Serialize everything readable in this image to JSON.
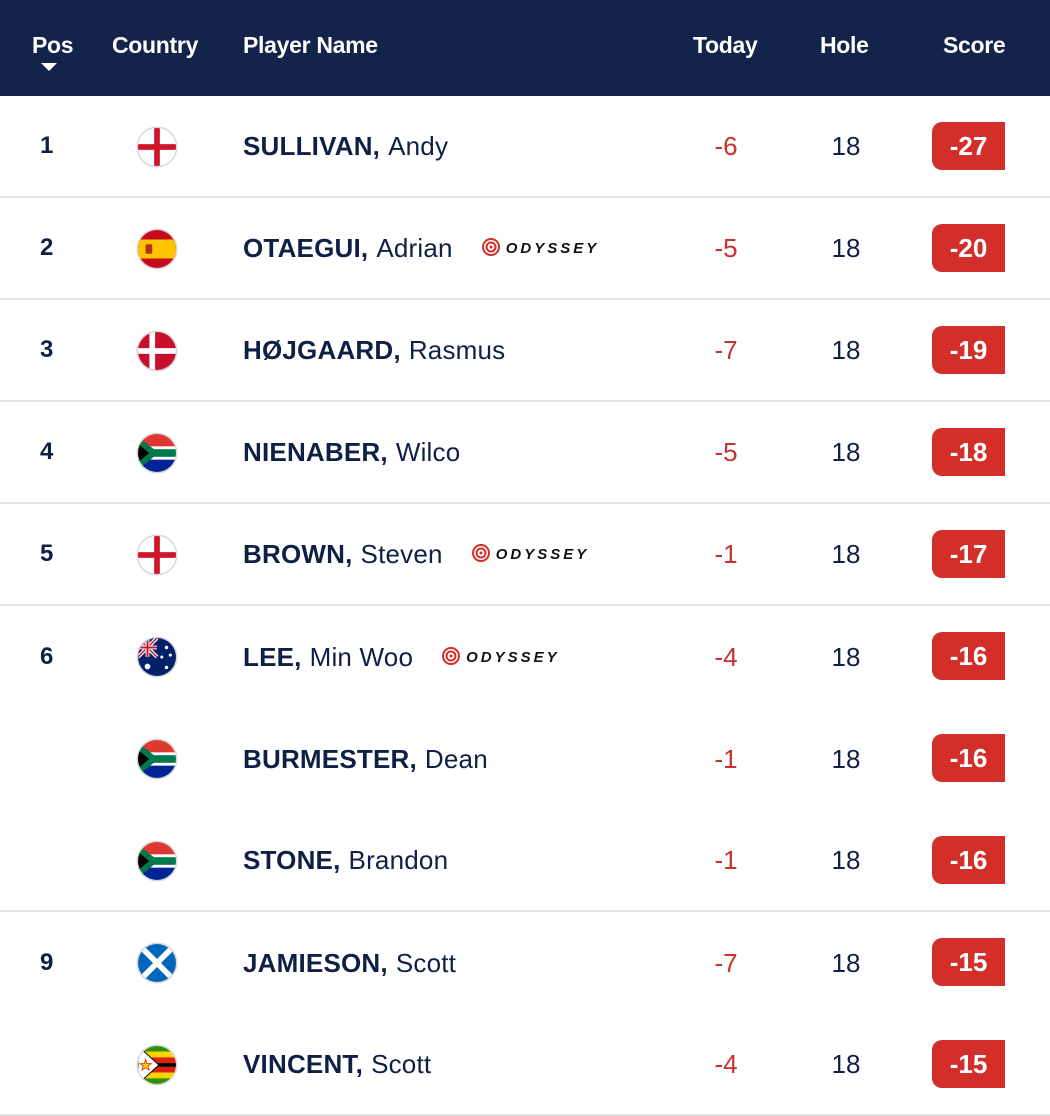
{
  "header": {
    "pos": "Pos",
    "country": "Country",
    "player": "Player Name",
    "today": "Today",
    "hole": "Hole",
    "score": "Score"
  },
  "sponsor_text": "ODYSSEY",
  "rows": [
    {
      "pos": "1",
      "flag": "england-flag-icon",
      "surname": "SULLIVAN,",
      "first": "Andy",
      "today": "-6",
      "hole": "18",
      "score": "-27"
    },
    {
      "pos": "2",
      "flag": "spain-flag-icon",
      "surname": "OTAEGUI,",
      "first": "Adrian",
      "today": "-5",
      "hole": "18",
      "score": "-20",
      "sponsor": true
    },
    {
      "pos": "3",
      "flag": "denmark-flag-icon",
      "surname": "HØJGAARD,",
      "first": "Rasmus",
      "today": "-7",
      "hole": "18",
      "score": "-19"
    },
    {
      "pos": "4",
      "flag": "south-africa-flag-icon",
      "surname": "NIENABER,",
      "first": "Wilco",
      "today": "-5",
      "hole": "18",
      "score": "-18"
    },
    {
      "pos": "5",
      "flag": "england-flag-icon",
      "surname": "BROWN,",
      "first": "Steven",
      "today": "-1",
      "hole": "18",
      "score": "-17",
      "sponsor": true
    },
    {
      "pos": "6",
      "flag": "australia-flag-icon",
      "surname": "LEE,",
      "first": "Min Woo",
      "today": "-4",
      "hole": "18",
      "score": "-16",
      "sponsor": true
    },
    {
      "pos": "",
      "flag": "south-africa-flag-icon",
      "surname": "BURMESTER,",
      "first": "Dean",
      "today": "-1",
      "hole": "18",
      "score": "-16"
    },
    {
      "pos": "",
      "flag": "south-africa-flag-icon",
      "surname": "STONE,",
      "first": "Brandon",
      "today": "-1",
      "hole": "18",
      "score": "-16"
    },
    {
      "pos": "9",
      "flag": "scotland-flag-icon",
      "surname": "JAMIESON,",
      "first": "Scott",
      "today": "-7",
      "hole": "18",
      "score": "-15"
    },
    {
      "pos": "",
      "flag": "zimbabwe-flag-icon",
      "surname": "VINCENT,",
      "first": "Scott",
      "today": "-4",
      "hole": "18",
      "score": "-15"
    }
  ],
  "colors": {
    "header_bg": "#13234a",
    "score_bg": "#d22f2b",
    "today_text": "#c8312c",
    "text": "#0f1f45"
  }
}
